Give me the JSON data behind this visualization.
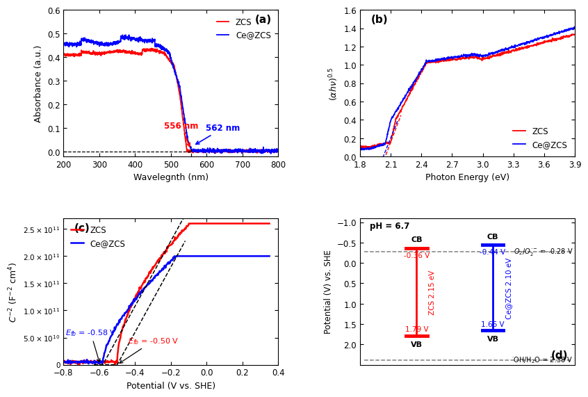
{
  "panel_a": {
    "title": "(a)",
    "xlabel": "Wavelegnth (nm)",
    "ylabel": "Absorbance (a.u.)",
    "xlim": [
      200,
      800
    ],
    "ylim": [
      -0.02,
      0.6
    ],
    "yticks": [
      0.0,
      0.1,
      0.2,
      0.3,
      0.4,
      0.5,
      0.6
    ],
    "xticks": [
      200,
      300,
      400,
      500,
      600,
      700,
      800
    ]
  },
  "panel_b": {
    "title": "(b)",
    "xlabel": "Photon Energy (eV)",
    "xlim": [
      1.8,
      3.9
    ],
    "ylim": [
      0.0,
      1.6
    ],
    "yticks": [
      0.0,
      0.2,
      0.4,
      0.6,
      0.8,
      1.0,
      1.2,
      1.4,
      1.6
    ],
    "xticks": [
      1.8,
      2.1,
      2.4,
      2.7,
      3.0,
      3.3,
      3.6,
      3.9
    ]
  },
  "panel_c": {
    "title": "(c)",
    "xlabel": "Potential (V vs. SHE)",
    "ylabel": "C⁻² (F⁻² cm⁴)",
    "xlim": [
      -0.8,
      0.4
    ],
    "ylim": [
      0,
      270000000000.0
    ],
    "yticks": [
      0,
      50000000000.0,
      100000000000.0,
      150000000000.0,
      200000000000.0,
      250000000000.0
    ],
    "ytick_labels": [
      "0",
      "5.0×10¹⁰",
      "1.0×10¹¹",
      "1.5×10¹¹",
      "2.0×10¹¹",
      "2.5×10¹¹"
    ],
    "xticks": [
      -0.8,
      -0.6,
      -0.4,
      -0.2,
      0.0,
      0.2,
      0.4
    ],
    "fb_blue": -0.58,
    "fb_red": -0.5
  },
  "panel_d": {
    "title": "(d)",
    "ylabel": "Potential (V) vs. SHE",
    "ylim": [
      -1.1,
      2.5
    ],
    "yticks": [
      -1.0,
      -0.5,
      0.0,
      0.5,
      1.0,
      1.5,
      2.0
    ],
    "ph_label": "pH = 6.7",
    "zcs_cb": -0.36,
    "zcs_vb": 1.79,
    "cezcs_cb": -0.44,
    "cezcs_vb": 1.66,
    "zcs_bg": "ZCS 2.15 eV",
    "cezcs_bg": "Ce@ZCS 2.10 eV",
    "o2_level": -0.28,
    "oh_level": 2.38,
    "o2_label": "O₂/O₂·⁻ = -0.28 V",
    "oh_label": "·OH/H₂O = 2.38 V"
  },
  "colors": {
    "red": "#FF0000",
    "blue": "#0000FF",
    "black": "#000000",
    "gray": "#808080"
  }
}
